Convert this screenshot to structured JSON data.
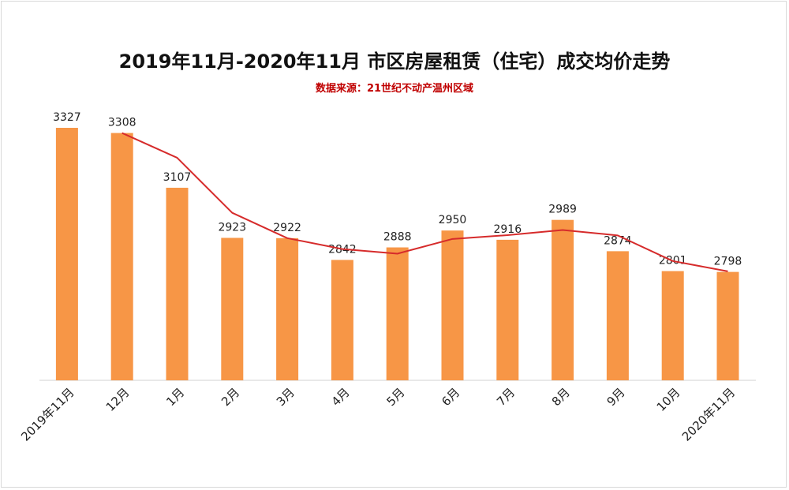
{
  "chart_data": {
    "type": "bar",
    "title": "2019年11月-2020年11月 市区房屋租赁（住宅）成交均价走势",
    "subtitle": "数据来源：21世纪不动产温州区域",
    "categories": [
      "2019年11月",
      "12月",
      "1月",
      "2月",
      "3月",
      "4月",
      "5月",
      "6月",
      "7月",
      "8月",
      "9月",
      "10月",
      "2020年11月"
    ],
    "series": [
      {
        "values": [
          3327,
          3308,
          3107,
          2923,
          2922,
          2842,
          2888,
          2950,
          2916,
          2989,
          2874,
          2801,
          2798
        ]
      }
    ],
    "trend_line": {
      "type": "line",
      "values": [
        3308,
        3217,
        3015,
        2922,
        2882,
        2865,
        2919,
        2933,
        2952,
        2932,
        2838,
        2800
      ]
    },
    "ylim": [
      2400,
      3400
    ],
    "grid": false,
    "colors": {
      "bar": "#f79646",
      "trend": "#d62b2b",
      "subtitle": "#c00000"
    }
  }
}
